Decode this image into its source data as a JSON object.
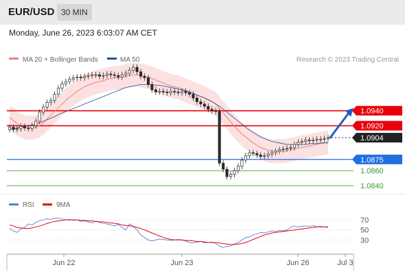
{
  "header": {
    "symbol": "EUR/USD",
    "timeframe": "30 MIN",
    "datetime": "Monday, June 26, 2023 6:03:07 AM CET"
  },
  "legend": {
    "ma20_label": "MA 20 + Bollinger Bands",
    "ma50_label": "MA 50",
    "credit": "Research © 2023 Trading Central",
    "colors": {
      "ma20": "#f08080",
      "ma50": "#1f4e9e",
      "band": "#fbd7d7"
    }
  },
  "chart_data": [
    {
      "type": "line",
      "title": "",
      "ylim": [
        1.083,
        1.1
      ],
      "x_ticks": [
        "Jun 22",
        "Jun 23",
        "Jun 26",
        "Jul 3"
      ],
      "candles_close": [
        1.0918,
        1.0915,
        1.0916,
        1.0919,
        1.0917,
        1.0916,
        1.092,
        1.0926,
        1.0938,
        1.0945,
        1.0951,
        1.0954,
        1.0962,
        1.097,
        1.0976,
        1.0979,
        1.0982,
        1.0984,
        1.0985,
        1.0984,
        1.0986,
        1.0987,
        1.0988,
        1.0988,
        1.0986,
        1.0987,
        1.0989,
        1.0988,
        1.0987,
        1.0985,
        1.0988,
        1.099,
        1.0994,
        1.0998,
        1.0992,
        1.0986,
        1.0984,
        1.0975,
        1.0968,
        1.0965,
        1.0966,
        1.0965,
        1.0964,
        1.0966,
        1.0965,
        1.0964,
        1.0966,
        1.0964,
        1.0962,
        1.0957,
        1.0952,
        1.0949,
        1.0946,
        1.0942,
        1.094,
        1.0939,
        1.087,
        1.0862,
        1.0852,
        1.0855,
        1.086,
        1.0866,
        1.0874,
        1.088,
        1.0884,
        1.0883,
        1.0881,
        1.0879,
        1.088,
        1.0882,
        1.0884,
        1.0886,
        1.0888,
        1.0889,
        1.089,
        1.0891,
        1.0895,
        1.0898,
        1.0899,
        1.0901,
        1.09,
        1.0901,
        1.0902,
        1.0902,
        1.0903,
        1.0904
      ],
      "series": [
        {
          "name": "MA 20 + Bollinger Bands",
          "values": [
            1.0931,
            1.0927,
            1.0923,
            1.092,
            1.0918,
            1.0917,
            1.0917,
            1.0918,
            1.092,
            1.0924,
            1.0929,
            1.0934,
            1.0939,
            1.0944,
            1.0949,
            1.0954,
            1.0958,
            1.0962,
            1.0966,
            1.0969,
            1.0972,
            1.0974,
            1.0976,
            1.0978,
            1.0979,
            1.098,
            1.0982,
            1.0983,
            1.0984,
            1.0984,
            1.0985,
            1.0986,
            1.0987,
            1.0988,
            1.0988,
            1.0987,
            1.0986,
            1.0985,
            1.0983,
            1.0981,
            1.0979,
            1.0977,
            1.0975,
            1.0973,
            1.0972,
            1.0971,
            1.0969,
            1.0967,
            1.0965,
            1.0963,
            1.0961,
            1.0959,
            1.0957,
            1.0954,
            1.0952,
            1.0949,
            1.0943,
            1.0937,
            1.0931,
            1.0925,
            1.0919,
            1.0914,
            1.0909,
            1.0905,
            1.0901,
            1.0897,
            1.0894,
            1.0891,
            1.0889,
            1.0887,
            1.0886,
            1.0886,
            1.0886,
            1.0886,
            1.0887,
            1.0888,
            1.0889,
            1.089,
            1.0891,
            1.0892,
            1.0893,
            1.0894,
            1.0895,
            1.0896,
            1.0897,
            1.0898
          ]
        },
        {
          "name": "MA 50",
          "values": [
            1.0915,
            1.0916,
            1.0917,
            1.0918,
            1.0919,
            1.092,
            1.0921,
            1.0922,
            1.0924,
            1.0926,
            1.0928,
            1.093,
            1.0932,
            1.0935,
            1.0937,
            1.0939,
            1.0941,
            1.0943,
            1.0945,
            1.0947,
            1.0949,
            1.0951,
            1.0953,
            1.0955,
            1.0957,
            1.0959,
            1.0961,
            1.0963,
            1.0965,
            1.0967,
            1.0969,
            1.0971,
            1.0972,
            1.0973,
            1.0974,
            1.0975,
            1.0975,
            1.0975,
            1.0975,
            1.0974,
            1.0974,
            1.0973,
            1.0972,
            1.0971,
            1.097,
            1.0969,
            1.0968,
            1.0966,
            1.0965,
            1.0963,
            1.0961,
            1.0959,
            1.0957,
            1.0955,
            1.0952,
            1.0949,
            1.0946,
            1.0942,
            1.0938,
            1.0934,
            1.093,
            1.0926,
            1.0922,
            1.0918,
            1.0914,
            1.0911,
            1.0908,
            1.0905,
            1.0903,
            1.0901,
            1.0899,
            1.0898,
            1.0897,
            1.0896,
            1.0895,
            1.0895,
            1.0895,
            1.0895,
            1.0895,
            1.0895,
            1.0896,
            1.0896,
            1.0896,
            1.0897,
            1.0897,
            1.0897
          ]
        }
      ],
      "levels": [
        {
          "label": "1.0940",
          "value": 1.094,
          "style": "resistance",
          "color": "#e8000b"
        },
        {
          "label": "1.0920",
          "value": 1.092,
          "style": "resistance",
          "color": "#e8000b"
        },
        {
          "label": "1.0904",
          "value": 1.0904,
          "style": "last-price",
          "color": "#222222"
        },
        {
          "label": "1.0875",
          "value": 1.0875,
          "style": "pivot",
          "color": "#1f6fe0"
        },
        {
          "label": "1.0860",
          "value": 1.086,
          "style": "support",
          "color": "#3c9a2c"
        },
        {
          "label": "1.0840",
          "value": 1.084,
          "style": "support",
          "color": "#3c9a2c"
        }
      ],
      "forecast_target": 1.094
    },
    {
      "type": "line",
      "title": "",
      "ylim": [
        10,
        85
      ],
      "y_ticks": [
        "70",
        "50",
        "30"
      ],
      "x_ticks": [
        "Jun 22",
        "Jun 23",
        "Jun 26",
        "Jul 3"
      ],
      "legend": [
        "RSI",
        "9MA"
      ],
      "series": [
        {
          "name": "RSI",
          "color": "#5b7fd6",
          "values": [
            53,
            48,
            45,
            52,
            55,
            62,
            60,
            65,
            68,
            70,
            72,
            71,
            73,
            74,
            72,
            70,
            71,
            69,
            70,
            67,
            68,
            66,
            64,
            67,
            65,
            63,
            62,
            60,
            58,
            61,
            55,
            50,
            62,
            57,
            50,
            40,
            35,
            30,
            28,
            30,
            32,
            31,
            30,
            29,
            30,
            31,
            30,
            28,
            25,
            24,
            26,
            27,
            24,
            25,
            26,
            23,
            18,
            15,
            17,
            18,
            22,
            25,
            30,
            35,
            36,
            40,
            42,
            45,
            44,
            46,
            48,
            47,
            49,
            48,
            50,
            55,
            58,
            56,
            57,
            58,
            57,
            59,
            56,
            57,
            56,
            55
          ]
        },
        {
          "name": "9MA",
          "color": "#e8000b",
          "values": [
            60,
            58,
            55,
            54,
            53,
            53,
            54,
            56,
            58,
            60,
            63,
            65,
            67,
            68,
            69,
            70,
            70,
            70,
            70,
            69,
            69,
            68,
            68,
            67,
            66,
            66,
            65,
            64,
            63,
            62,
            60,
            59,
            58,
            57,
            55,
            53,
            50,
            47,
            44,
            41,
            38,
            35,
            33,
            31,
            30,
            30,
            30,
            29,
            29,
            28,
            27,
            27,
            26,
            25,
            25,
            25,
            24,
            23,
            22,
            21,
            21,
            22,
            23,
            25,
            28,
            31,
            34,
            37,
            40,
            42,
            44,
            45,
            46,
            47,
            48,
            49,
            50,
            51,
            52,
            53,
            54,
            55,
            56,
            56,
            56,
            56
          ]
        }
      ]
    }
  ]
}
